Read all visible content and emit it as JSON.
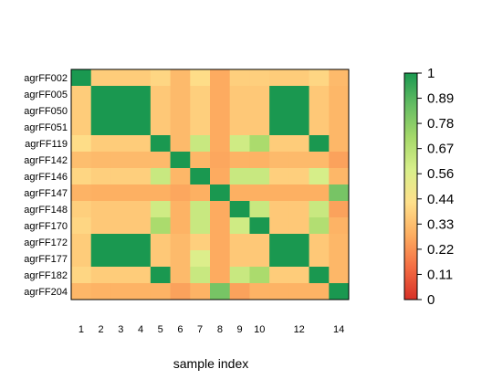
{
  "chart_data": {
    "type": "heatmap",
    "xlabel": "sample index",
    "rows": [
      "agrFF002",
      "agrFF005",
      "agrFF050",
      "agrFF051",
      "agrFF119",
      "agrFF142",
      "agrFF146",
      "agrFF147",
      "agrFF148",
      "agrFF170",
      "agrFF172",
      "agrFF177",
      "agrFF182",
      "agrFF204"
    ],
    "x_ticks": [
      "1",
      "2",
      "3",
      "4",
      "5",
      "6",
      "7",
      "8",
      "9",
      "10",
      "12",
      "14"
    ],
    "x_tick_positions": [
      1,
      2,
      3,
      4,
      5,
      6,
      7,
      8,
      9,
      10,
      12,
      14
    ],
    "values": [
      [
        1.0,
        0.37,
        0.37,
        0.37,
        0.4,
        0.32,
        0.42,
        0.28,
        0.38,
        0.38,
        0.37,
        0.37,
        0.4,
        0.32
      ],
      [
        0.37,
        1.0,
        1.0,
        1.0,
        0.36,
        0.32,
        0.38,
        0.28,
        0.36,
        0.36,
        1.0,
        1.0,
        0.36,
        0.31
      ],
      [
        0.37,
        1.0,
        1.0,
        1.0,
        0.36,
        0.32,
        0.38,
        0.28,
        0.36,
        0.36,
        1.0,
        1.0,
        0.36,
        0.31
      ],
      [
        0.37,
        1.0,
        1.0,
        1.0,
        0.36,
        0.32,
        0.38,
        0.28,
        0.36,
        0.36,
        1.0,
        1.0,
        0.36,
        0.31
      ],
      [
        0.42,
        0.37,
        0.37,
        0.37,
        1.0,
        0.32,
        0.62,
        0.28,
        0.6,
        0.7,
        0.37,
        0.37,
        1.0,
        0.31
      ],
      [
        0.33,
        0.32,
        0.32,
        0.32,
        0.32,
        1.0,
        0.31,
        0.27,
        0.3,
        0.3,
        0.32,
        0.32,
        0.32,
        0.26
      ],
      [
        0.4,
        0.38,
        0.38,
        0.38,
        0.62,
        0.31,
        1.0,
        0.28,
        0.62,
        0.62,
        0.38,
        0.38,
        0.58,
        0.31
      ],
      [
        0.3,
        0.29,
        0.29,
        0.29,
        0.29,
        0.27,
        0.29,
        1.0,
        0.29,
        0.29,
        0.29,
        0.29,
        0.29,
        0.82
      ],
      [
        0.38,
        0.36,
        0.36,
        0.36,
        0.6,
        0.3,
        0.62,
        0.28,
        1.0,
        0.62,
        0.36,
        0.36,
        0.62,
        0.26
      ],
      [
        0.4,
        0.36,
        0.36,
        0.36,
        0.7,
        0.3,
        0.62,
        0.28,
        0.6,
        1.0,
        0.36,
        0.36,
        0.68,
        0.3
      ],
      [
        0.37,
        1.0,
        1.0,
        1.0,
        0.36,
        0.32,
        0.38,
        0.28,
        0.36,
        0.36,
        1.0,
        1.0,
        0.36,
        0.31
      ],
      [
        0.37,
        1.0,
        1.0,
        1.0,
        0.36,
        0.32,
        0.56,
        0.28,
        0.36,
        0.36,
        1.0,
        1.0,
        0.36,
        0.31
      ],
      [
        0.4,
        0.37,
        0.37,
        0.37,
        1.0,
        0.32,
        0.62,
        0.28,
        0.62,
        0.7,
        0.37,
        0.37,
        1.0,
        0.31
      ],
      [
        0.31,
        0.3,
        0.3,
        0.3,
        0.3,
        0.26,
        0.3,
        0.82,
        0.26,
        0.3,
        0.3,
        0.3,
        0.3,
        1.0
      ]
    ],
    "colorbar": {
      "ticks": [
        "1",
        "0.89",
        "0.78",
        "0.67",
        "0.56",
        "0.44",
        "0.33",
        "0.22",
        "0.11",
        "0"
      ],
      "min": 0,
      "max": 1
    },
    "palette": [
      "#D73027",
      "#F46D43",
      "#FDAE61",
      "#FEE08B",
      "#D9EF8B",
      "#A6D96A",
      "#66BD63",
      "#1A9850"
    ]
  }
}
